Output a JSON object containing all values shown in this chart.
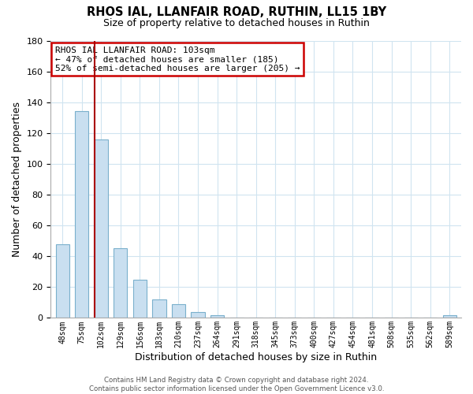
{
  "title": "RHOS IAL, LLANFAIR ROAD, RUTHIN, LL15 1BY",
  "subtitle": "Size of property relative to detached houses in Ruthin",
  "xlabel": "Distribution of detached houses by size in Ruthin",
  "ylabel": "Number of detached properties",
  "bar_labels": [
    "48sqm",
    "75sqm",
    "102sqm",
    "129sqm",
    "156sqm",
    "183sqm",
    "210sqm",
    "237sqm",
    "264sqm",
    "291sqm",
    "318sqm",
    "345sqm",
    "373sqm",
    "400sqm",
    "427sqm",
    "454sqm",
    "481sqm",
    "508sqm",
    "535sqm",
    "562sqm",
    "589sqm"
  ],
  "bar_values": [
    48,
    134,
    116,
    45,
    25,
    12,
    9,
    4,
    2,
    0,
    0,
    0,
    0,
    0,
    0,
    0,
    0,
    0,
    0,
    0,
    2
  ],
  "bar_color": "#c9dff0",
  "bar_edge_color": "#7ab0cc",
  "highlight_bar_index": 2,
  "highlight_line_color": "#aa0000",
  "annotation_title": "RHOS IAL LLANFAIR ROAD: 103sqm",
  "annotation_line1": "← 47% of detached houses are smaller (185)",
  "annotation_line2": "52% of semi-detached houses are larger (205) →",
  "annotation_box_color": "#ffffff",
  "annotation_box_edge": "#cc0000",
  "ylim": [
    0,
    180
  ],
  "yticks": [
    0,
    20,
    40,
    60,
    80,
    100,
    120,
    140,
    160,
    180
  ],
  "footer_line1": "Contains HM Land Registry data © Crown copyright and database right 2024.",
  "footer_line2": "Contains public sector information licensed under the Open Government Licence v3.0.",
  "bg_color": "#ffffff",
  "grid_color": "#d0e4f0"
}
